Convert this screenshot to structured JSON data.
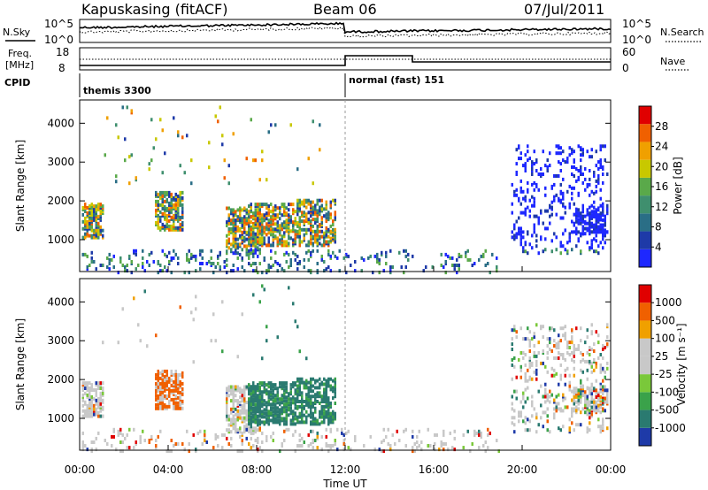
{
  "header": {
    "station": "Kapuskasing (fitACF)",
    "beam": "Beam 06",
    "date": "07/Jul/2011"
  },
  "labels": {
    "nsky": "N.Sky",
    "nsky_ticks": [
      "10^5",
      "10^0"
    ],
    "nsearch": "N.Search",
    "nsearch_ticks": [
      "10^5",
      "10^0"
    ],
    "freq_line1": "Freq.",
    "freq_line2": "[MHz]",
    "freq_ticks": [
      "18",
      "8"
    ],
    "nave": "Nave",
    "nave_ticks": [
      "60",
      "0"
    ],
    "cpid": "CPID",
    "cpid_left": "themis 3300",
    "cpid_right": "normal (fast) 151"
  },
  "colors": {
    "power_scale": [
      "#1e28ff",
      "#1e3aa8",
      "#2a6e86",
      "#3f8f6e",
      "#5aa94a",
      "#c8c800",
      "#f0a000",
      "#f06000",
      "#e00000"
    ],
    "velocity_scale": [
      "#1e3aa8",
      "#2a7a70",
      "#3aa24a",
      "#7ac83a",
      "#c8c8c8",
      "#c8c8c8",
      "#f0a000",
      "#f06000",
      "#e00000"
    ]
  },
  "chart_data": [
    {
      "type": "heatmap",
      "name": "power",
      "ylabel": "Slant Range [km]",
      "ylim": [
        180,
        4600
      ],
      "y_ticks": [
        "1000",
        "2000",
        "3000",
        "4000"
      ],
      "colorbar": {
        "label": "Power [dB]",
        "ticks": [
          "4",
          "8",
          "12",
          "16",
          "20",
          "24",
          "28"
        ]
      }
    },
    {
      "type": "heatmap",
      "name": "velocity",
      "xlabel": "Time UT",
      "ylabel": "Slant Range [km]",
      "ylim": [
        180,
        4600
      ],
      "y_ticks": [
        "1000",
        "2000",
        "3000",
        "4000"
      ],
      "x_ticks": [
        "00:00",
        "04:00",
        "08:00",
        "12:00",
        "16:00",
        "20:00",
        "00:00"
      ],
      "colorbar": {
        "label": "Velocity [m s⁻¹]",
        "ticks": [
          "1000",
          "500",
          "100",
          "25",
          "-25",
          "-100",
          "-500",
          "-1000"
        ]
      }
    }
  ]
}
